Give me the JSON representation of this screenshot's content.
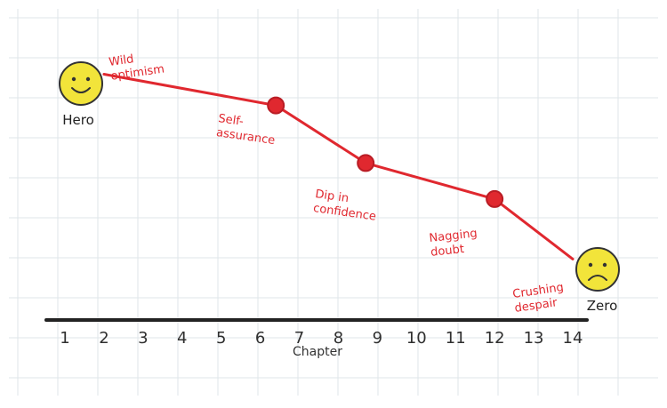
{
  "chart_data": {
    "type": "line",
    "xlabel": "Chapter",
    "ylabel": "",
    "x_ticks": [
      "1",
      "2",
      "3",
      "4",
      "5",
      "6",
      "7",
      "8",
      "9",
      "10",
      "11",
      "12",
      "13",
      "14"
    ],
    "xlim": [
      1,
      14
    ],
    "ylim": [
      0,
      10
    ],
    "grid": true,
    "series": [
      {
        "points": [
          {
            "x": 2,
            "y": 9.5
          },
          {
            "x": 6.4,
            "y": 8.2
          },
          {
            "x": 8.7,
            "y": 5.8
          },
          {
            "x": 12,
            "y": 4.3
          },
          {
            "x": 14,
            "y": 1.8
          }
        ],
        "color": "#e0282f"
      }
    ],
    "annotations": [
      {
        "text_lines": [
          "Wild",
          "optimism"
        ],
        "x": 2,
        "y": 9.5,
        "kind": "point_label"
      },
      {
        "text_lines": [
          "Self-",
          "assurance"
        ],
        "x": 6.4,
        "y": 8.2,
        "kind": "point_label"
      },
      {
        "text_lines": [
          "Dip in",
          "confidence"
        ],
        "x": 8.7,
        "y": 5.8,
        "kind": "point_label"
      },
      {
        "text_lines": [
          "Nagging",
          "doubt"
        ],
        "x": 12,
        "y": 4.3,
        "kind": "point_label"
      },
      {
        "text_lines": [
          "Crushing",
          "despair"
        ],
        "x": 14,
        "y": 1.8,
        "kind": "point_label"
      },
      {
        "text": "Hero",
        "kind": "start_face"
      },
      {
        "text": "Zero",
        "kind": "end_face"
      }
    ],
    "colors": {
      "line": "#e0282f",
      "text_red": "#e0282f",
      "face_yellow": "#f2e43a",
      "face_stroke": "#333333",
      "grid": "#dfe5ea",
      "axis": "#222222"
    }
  }
}
